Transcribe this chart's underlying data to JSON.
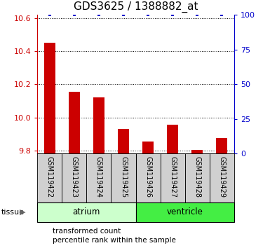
{
  "title": "GDS3625 / 1388882_at",
  "samples": [
    "GSM119422",
    "GSM119423",
    "GSM119424",
    "GSM119425",
    "GSM119426",
    "GSM119427",
    "GSM119428",
    "GSM119429"
  ],
  "transformed_counts": [
    10.45,
    10.155,
    10.12,
    9.93,
    9.855,
    9.955,
    9.805,
    9.875
  ],
  "percentile_ranks": [
    100,
    100,
    100,
    100,
    100,
    100,
    100,
    100
  ],
  "ylim_left": [
    9.78,
    10.62
  ],
  "ylim_right": [
    0,
    100
  ],
  "yticks_left": [
    9.8,
    10.0,
    10.2,
    10.4,
    10.6
  ],
  "yticks_right": [
    0,
    25,
    50,
    75,
    100
  ],
  "groups": [
    {
      "label": "atrium",
      "indices": [
        0,
        1,
        2,
        3
      ],
      "color": "#ccffcc"
    },
    {
      "label": "ventricle",
      "indices": [
        4,
        5,
        6,
        7
      ],
      "color": "#44ee44"
    }
  ],
  "bar_color": "#cc0000",
  "dot_color": "#0000cc",
  "dot_marker": "s",
  "dot_size": 10,
  "grid_linestyle": ":",
  "grid_color": "#000000",
  "grid_linewidth": 0.7,
  "title_fontsize": 11,
  "tick_fontsize": 8,
  "sample_fontsize": 7,
  "label_fontsize": 8.5,
  "legend_fontsize": 7.5,
  "tick_color_left": "#cc0000",
  "tick_color_right": "#0000cc",
  "sample_box_color": "#d0d0d0",
  "tissue_label_fontsize": 8.5,
  "bar_width": 0.45
}
